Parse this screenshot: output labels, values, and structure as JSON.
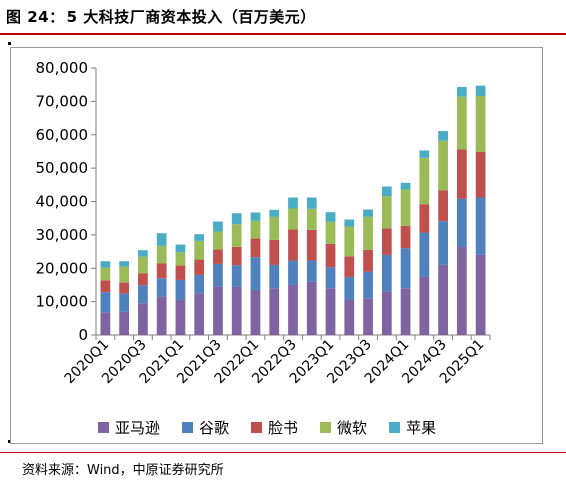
{
  "header": {
    "figure_label": "图 24：",
    "title": "5 大科技厂商资本投入（百万美元）"
  },
  "source_text": "资料来源：Wind，中原证券研究所",
  "colors": {
    "亚马逊": "#8064a2",
    "谷歌": "#4f81bd",
    "脸书": "#c0504d",
    "微软": "#9bbb59",
    "苹果": "#4bacc6",
    "title_rule": "#c00000"
  },
  "chart_data": {
    "type": "bar",
    "stacked": true,
    "title": "",
    "xlabel": "",
    "ylabel": "",
    "ylim": [
      0,
      80000
    ],
    "yticks": [
      0,
      10000,
      20000,
      30000,
      40000,
      50000,
      60000,
      70000,
      80000
    ],
    "ytick_labels": [
      "0",
      "10,000",
      "20,000",
      "30,000",
      "40,000",
      "50,000",
      "60,000",
      "70,000",
      "80,000"
    ],
    "grid": false,
    "legend_position": "bottom",
    "categories": [
      "2020Q1",
      "2020Q2",
      "2020Q3",
      "2020Q4",
      "2021Q1",
      "2021Q2",
      "2021Q3",
      "2021Q4",
      "2022Q1",
      "2022Q2",
      "2022Q3",
      "2022Q4",
      "2023Q1",
      "2023Q2",
      "2023Q3",
      "2023Q4",
      "2024Q1",
      "2024Q2",
      "2024Q3",
      "2024Q4",
      "2025Q1"
    ],
    "x_tick_labels": [
      "2020Q1",
      "",
      "2020Q3",
      "",
      "2021Q1",
      "",
      "2021Q3",
      "",
      "2022Q1",
      "",
      "2022Q3",
      "",
      "2023Q1",
      "",
      "2023Q3",
      "",
      "2024Q1",
      "",
      "2024Q3",
      "",
      "2025Q1"
    ],
    "series": [
      {
        "name": "亚马逊",
        "values": [
          6800,
          7000,
          9500,
          11500,
          10500,
          12500,
          14500,
          14500,
          13500,
          14000,
          15000,
          16000,
          14000,
          10500,
          11000,
          13000,
          14000,
          17500,
          21000,
          26500,
          24000
        ]
      },
      {
        "name": "谷歌",
        "values": [
          6000,
          5400,
          5400,
          5500,
          6000,
          5500,
          6800,
          6400,
          9800,
          7000,
          7300,
          6300,
          6300,
          6900,
          8000,
          11000,
          12000,
          13200,
          13100,
          14300,
          17200
        ]
      },
      {
        "name": "脸书",
        "values": [
          3600,
          3300,
          3600,
          4500,
          4300,
          4600,
          4300,
          5500,
          5600,
          7500,
          9300,
          9200,
          7000,
          6200,
          6500,
          7900,
          6700,
          8500,
          9200,
          14800,
          13700
        ]
      },
      {
        "name": "微软",
        "values": [
          3800,
          4800,
          5000,
          5200,
          4000,
          5600,
          5400,
          6800,
          5300,
          6900,
          6300,
          6300,
          6600,
          8900,
          9900,
          9700,
          10900,
          13900,
          14900,
          15800,
          16700
        ]
      },
      {
        "name": "苹果",
        "values": [
          1900,
          1600,
          1900,
          3800,
          2300,
          2000,
          3000,
          3300,
          2500,
          2100,
          3300,
          3400,
          2900,
          2100,
          2200,
          2900,
          2000,
          2200,
          2900,
          2900,
          3100
        ]
      }
    ]
  }
}
